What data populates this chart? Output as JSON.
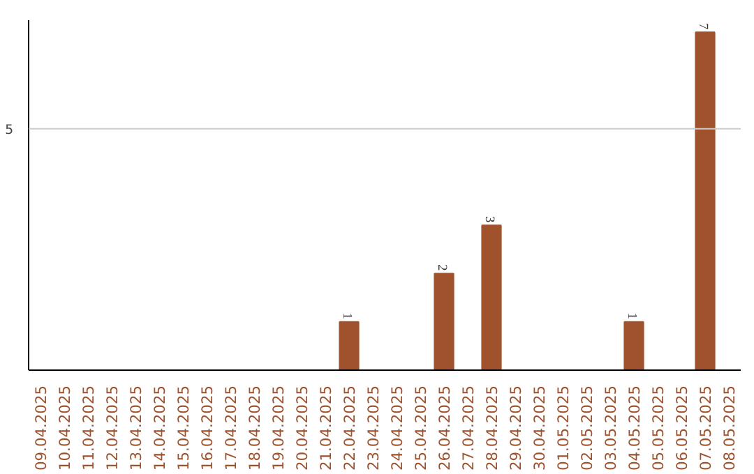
{
  "chart_data": {
    "type": "bar",
    "categories": [
      "09.04.2025",
      "10.04.2025",
      "11.04.2025",
      "12.04.2025",
      "13.04.2025",
      "14.04.2025",
      "15.04.2025",
      "16.04.2025",
      "17.04.2025",
      "18.04.2025",
      "19.04.2025",
      "20.04.2025",
      "21.04.2025",
      "22.04.2025",
      "23.04.2025",
      "24.04.2025",
      "25.04.2025",
      "26.04.2025",
      "27.04.2025",
      "28.04.2025",
      "29.04.2025",
      "30.04.2025",
      "01.05.2025",
      "02.05.2025",
      "03.05.2025",
      "04.05.2025",
      "05.05.2025",
      "06.05.2025",
      "07.05.2025",
      "08.05.2025"
    ],
    "values": [
      null,
      null,
      null,
      null,
      null,
      null,
      null,
      null,
      null,
      null,
      null,
      null,
      null,
      1,
      null,
      null,
      null,
      2,
      null,
      3,
      null,
      null,
      null,
      null,
      null,
      1,
      null,
      null,
      7,
      null
    ],
    "color": "#a0522d",
    "ylim": [
      0,
      7.25
    ],
    "data_labels": true,
    "ref_lines": [
      {
        "axis": "y",
        "value": 5,
        "label": "5",
        "color": "#cccccc"
      }
    ]
  }
}
